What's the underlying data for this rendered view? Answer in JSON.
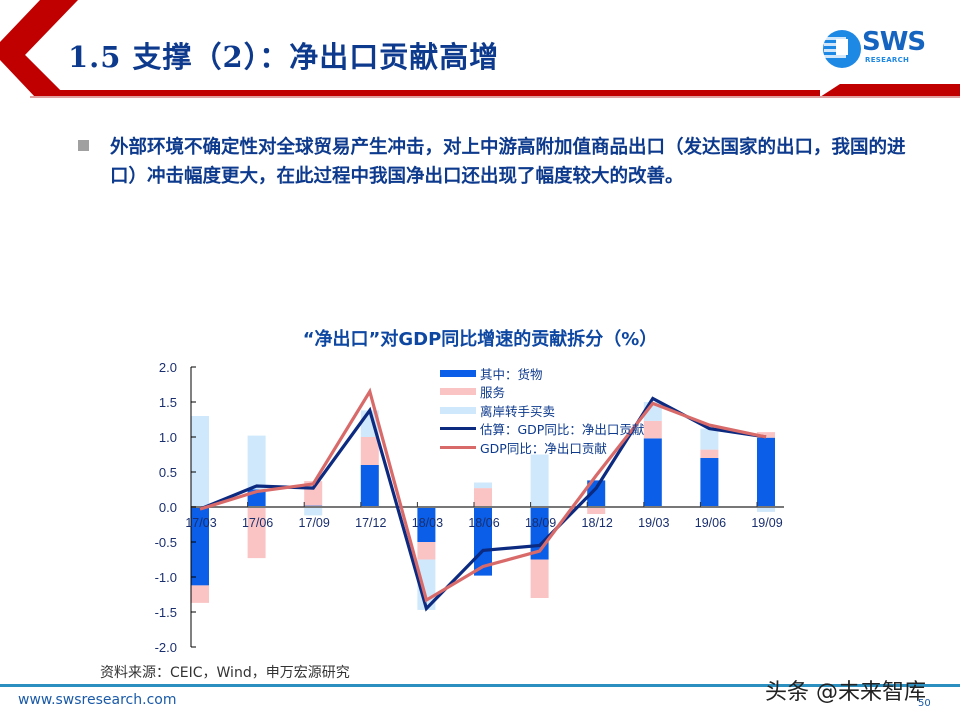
{
  "slide": {
    "title": "1.5 支撑（2）：净出口贡献高增",
    "logo": {
      "main": "SWS",
      "sub": "RESEARCH"
    },
    "bullet": "外部环境不确定性对全球贸易产生冲击，对上中游高附加值商品出口（发达国家的出口，我国的进口）冲击幅度更大，在此过程中我国净出口还出现了幅度较大的改善。",
    "source": "资料来源：CEIC，Wind，申万宏源研究",
    "footer_url": "www.swsresearch.com",
    "page_number": "50",
    "watermark": "头条 @未来智库",
    "colors": {
      "accent_red": "#c00000",
      "title_blue": "#0d3a8c",
      "footer_line": "#2b8fc0"
    }
  },
  "chart_data": {
    "type": "bar",
    "subtype": "stacked bar with line overlays",
    "title": "“净出口”对GDP同比增速的贡献拆分（%）",
    "xlabel": "",
    "ylabel": "",
    "ylim": [
      -2.0,
      2.0
    ],
    "yticks": [
      "2.0",
      "1.5",
      "1.0",
      "0.5",
      "0.0",
      "-0.5",
      "-1.0",
      "-1.5",
      "-2.0"
    ],
    "grid": false,
    "legend_position": "upper center inside",
    "categories": [
      "17/03",
      "17/06",
      "17/09",
      "17/12",
      "18/03",
      "18/06",
      "18/09",
      "18/12",
      "19/03",
      "19/06",
      "19/09"
    ],
    "series": [
      {
        "name": "其中：货物",
        "kind": "bar",
        "color": "#0a5ee8",
        "values": [
          -1.12,
          0.25,
          0.02,
          0.6,
          -0.5,
          -0.98,
          -0.75,
          0.38,
          0.98,
          0.7,
          0.99
        ]
      },
      {
        "name": "服务",
        "kind": "bar",
        "color": "#fbc4c4",
        "values": [
          -0.25,
          -0.73,
          0.35,
          0.4,
          -0.25,
          0.27,
          -0.55,
          -0.1,
          0.25,
          0.12,
          0.08
        ]
      },
      {
        "name": "离岸转手买卖",
        "kind": "bar",
        "color": "#cfe8fb",
        "values": [
          1.3,
          0.77,
          -0.12,
          0.38,
          -0.72,
          0.08,
          0.75,
          0.0,
          0.27,
          0.3,
          -0.07
        ]
      },
      {
        "name": "估算：GDP同比：净出口贡献",
        "kind": "line",
        "color": "#0b2a80",
        "values": [
          -0.03,
          0.3,
          0.27,
          1.38,
          -1.45,
          -0.62,
          -0.55,
          0.27,
          1.55,
          1.12,
          1.0
        ]
      },
      {
        "name": "GDP同比：净出口贡献",
        "kind": "line",
        "color": "#d96a6a",
        "values": [
          -0.03,
          0.22,
          0.33,
          1.65,
          -1.33,
          -0.85,
          -0.63,
          0.45,
          1.48,
          1.17,
          1.0
        ]
      }
    ]
  }
}
